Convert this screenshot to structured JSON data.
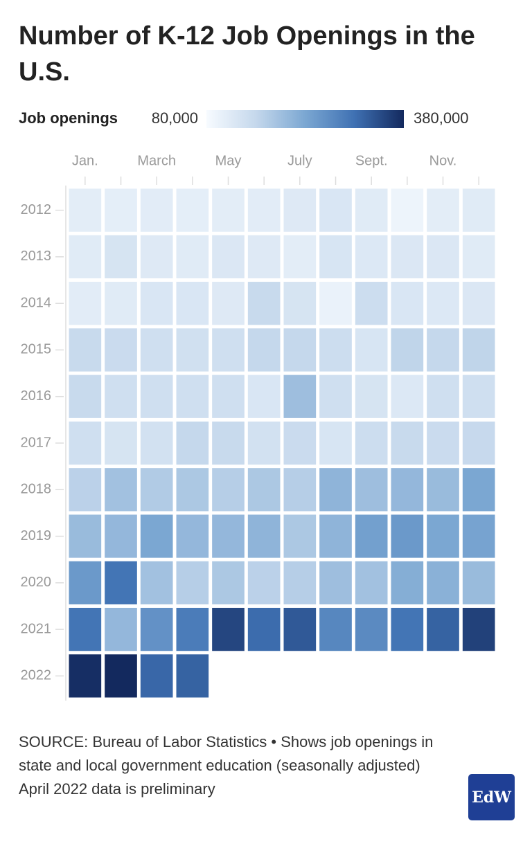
{
  "chart_data": {
    "type": "heatmap",
    "title": "Number of K-12 Job Openings in the U.S.",
    "legend_title": "Job openings",
    "clim": [
      80000,
      380000
    ],
    "cticks": [
      {
        "value": 80000,
        "label": "80,000"
      },
      {
        "value": 380000,
        "label": "380,000"
      }
    ],
    "colors": [
      "#f7fbff",
      "#c5d8ec",
      "#7ba7d2",
      "#3f71b3",
      "#13295e"
    ],
    "categories": [
      "Jan.",
      null,
      "March",
      null,
      "May",
      null,
      "July",
      null,
      "Sept.",
      null,
      "Nov.",
      null
    ],
    "rows": [
      "2012",
      "2013",
      "2014",
      "2015",
      "2016",
      "2017",
      "2018",
      "2019",
      "2020",
      "2021",
      "2022"
    ],
    "values": [
      [
        110000,
        108000,
        112000,
        108000,
        110000,
        112000,
        118000,
        125000,
        115000,
        95000,
        110000,
        115000
      ],
      [
        115000,
        130000,
        118000,
        115000,
        122000,
        118000,
        110000,
        128000,
        120000,
        122000,
        122000,
        115000
      ],
      [
        112000,
        115000,
        125000,
        125000,
        118000,
        150000,
        130000,
        100000,
        145000,
        125000,
        120000,
        122000
      ],
      [
        150000,
        148000,
        140000,
        138000,
        140000,
        155000,
        155000,
        145000,
        128000,
        160000,
        155000,
        160000
      ],
      [
        150000,
        140000,
        140000,
        140000,
        140000,
        125000,
        195000,
        140000,
        130000,
        120000,
        140000,
        140000
      ],
      [
        140000,
        130000,
        135000,
        155000,
        150000,
        135000,
        148000,
        128000,
        145000,
        150000,
        148000,
        152000
      ],
      [
        165000,
        190000,
        175000,
        180000,
        170000,
        180000,
        170000,
        210000,
        195000,
        205000,
        200000,
        230000
      ],
      [
        200000,
        205000,
        230000,
        205000,
        205000,
        210000,
        180000,
        210000,
        240000,
        250000,
        230000,
        235000
      ],
      [
        250000,
        300000,
        190000,
        170000,
        180000,
        165000,
        170000,
        195000,
        190000,
        220000,
        215000,
        200000
      ],
      [
        300000,
        205000,
        260000,
        290000,
        350000,
        310000,
        330000,
        275000,
        270000,
        300000,
        320000,
        355000
      ],
      [
        375000,
        380000,
        315000,
        320000,
        null,
        null,
        null,
        null,
        null,
        null,
        null,
        null
      ]
    ],
    "source": "SOURCE: Bureau of Labor Statistics • Shows job openings in state and local government education (seasonally adjusted)",
    "note": "April 2022 data is preliminary",
    "logo": "EdW"
  }
}
